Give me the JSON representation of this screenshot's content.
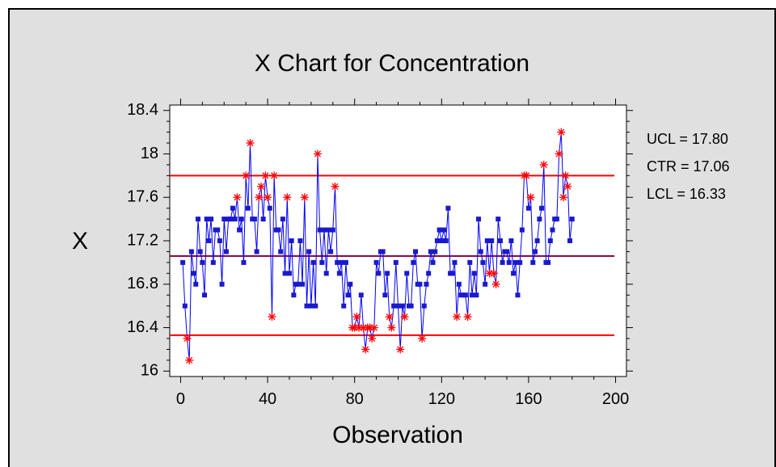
{
  "chart_data": {
    "type": "line",
    "title": "X Chart for Concentration",
    "xlabel": "Observation",
    "ylabel": "X",
    "xlim": [
      -5,
      205
    ],
    "ylim": [
      15.95,
      18.45
    ],
    "xticks": [
      0,
      40,
      80,
      120,
      160,
      200
    ],
    "xtick_labels": [
      "0",
      "40",
      "80",
      "120",
      "160",
      "200"
    ],
    "yticks": [
      16,
      16.4,
      16.8,
      17.2,
      17.6,
      18,
      18.4
    ],
    "ytick_labels": [
      "16",
      "16.4",
      "16.8",
      "17.2",
      "17.6",
      "18",
      "18.4"
    ],
    "control_limits": {
      "ucl": 17.8,
      "ctr": 17.06,
      "lcl": 16.33,
      "ucl_label": "UCL = 17.80",
      "ctr_label": "CTR = 17.06",
      "lcl_label": "LCL = 16.33"
    },
    "series": [
      {
        "values": [
          17.0,
          16.6,
          16.3,
          16.1,
          17.1,
          16.9,
          16.8,
          17.4,
          17.1,
          17.0,
          16.7,
          17.4,
          17.2,
          17.4,
          17.0,
          17.3,
          17.3,
          17.2,
          16.8,
          17.4,
          17.1,
          17.4,
          17.4,
          17.5,
          17.4,
          17.6,
          17.3,
          17.4,
          17.0,
          17.8,
          17.5,
          18.1,
          17.4,
          17.4,
          17.1,
          17.6,
          17.7,
          17.4,
          17.8,
          17.6,
          17.5,
          16.5,
          17.8,
          17.3,
          17.3,
          17.1,
          17.4,
          16.9,
          17.6,
          16.9,
          17.2,
          16.7,
          16.8,
          16.8,
          17.2,
          16.8,
          17.6,
          16.6,
          17.1,
          16.6,
          17.0,
          16.6,
          18.0,
          17.3,
          17.0,
          17.3,
          16.9,
          17.3,
          17.1,
          17.3,
          17.7,
          17.0,
          16.9,
          17.0,
          16.6,
          17.0,
          16.7,
          16.8,
          16.4,
          16.4,
          16.5,
          16.4,
          16.7,
          16.4,
          16.2,
          16.4,
          16.4,
          16.3,
          16.4,
          17.0,
          16.9,
          17.1,
          17.1,
          16.7,
          16.9,
          16.5,
          16.4,
          16.6,
          17.0,
          16.6,
          16.2,
          16.6,
          16.5,
          16.9,
          16.6,
          16.6,
          17.0,
          17.1,
          16.8,
          16.8,
          16.3,
          16.6,
          16.8,
          16.9,
          17.1,
          17.0,
          17.1,
          17.2,
          17.3,
          17.2,
          17.3,
          17.2,
          17.5,
          16.9,
          16.9,
          17.0,
          16.5,
          16.8,
          16.7,
          16.7,
          16.7,
          16.5,
          17.0,
          16.7,
          16.9,
          16.7,
          17.4,
          17.1,
          17.0,
          16.8,
          17.2,
          16.9,
          17.2,
          16.9,
          16.8,
          17.4,
          17.2,
          17.0,
          17.1,
          17.1,
          17.0,
          17.2,
          16.9,
          17.0,
          16.7,
          17.0,
          17.3,
          17.8,
          17.8,
          17.5,
          17.6,
          17.0,
          17.1,
          17.2,
          17.4,
          17.5,
          17.9,
          17.0,
          17.0,
          17.2,
          17.3,
          17.4,
          17.4,
          18.0,
          18.2,
          17.6,
          17.8,
          17.7,
          17.2,
          17.4
        ],
        "flagged_marker": "asterisk",
        "flag_rule": "unusual points"
      }
    ],
    "grid": false,
    "legend": "none",
    "colors": {
      "series_line": "#0000ff",
      "series_marker": "#1a1acc",
      "flag_marker": "#ff0000",
      "limit_line": "#ff0000",
      "center_line": "#800040",
      "plot_background": "#ffffff",
      "panel_background": "#e0e0e0"
    }
  }
}
